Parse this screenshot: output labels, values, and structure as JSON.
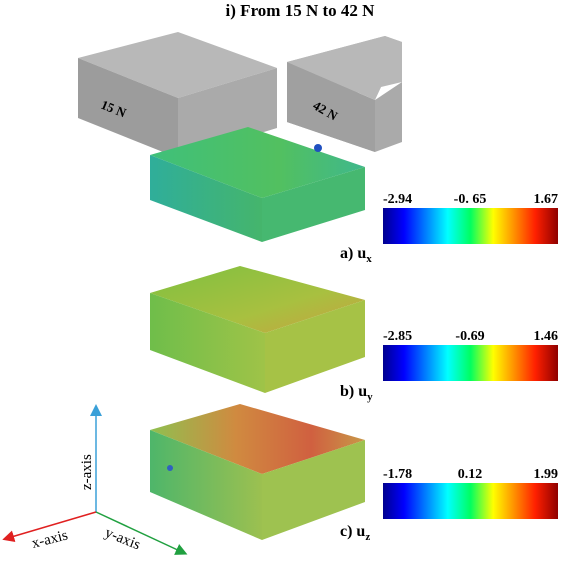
{
  "title": "i) From 15 N to 42 N",
  "specimens": [
    {
      "label": "15 N"
    },
    {
      "label": "42 N"
    }
  ],
  "panels": [
    {
      "label": "a) u",
      "subscript": "x",
      "colorbar": {
        "min": "-2.94",
        "mid": "-0. 65",
        "max": "1.67"
      }
    },
    {
      "label": "b) u",
      "subscript": "y",
      "colorbar": {
        "min": "-2.85",
        "mid": "-0.69",
        "max": "1.46"
      }
    },
    {
      "label": "c) u",
      "subscript": "z",
      "colorbar": {
        "min": "-1.78",
        "mid": "0.12",
        "max": "1.99"
      }
    }
  ],
  "axes": {
    "x": "x-axis",
    "y": "y-axis",
    "z": "z-axis"
  }
}
